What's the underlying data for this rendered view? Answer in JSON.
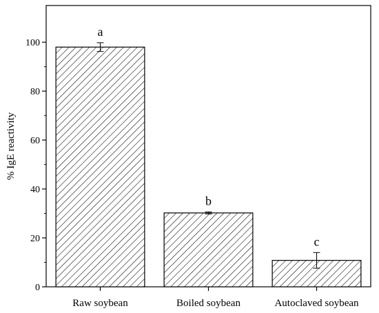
{
  "chart_data": {
    "type": "bar",
    "title": "",
    "xlabel": "",
    "ylabel": "% IgE reactivity",
    "categories": [
      "Raw soybean",
      "Boiled soybean",
      "Autoclaved soybean"
    ],
    "values": [
      98.0,
      30.2,
      10.8
    ],
    "errors": [
      1.8,
      0.4,
      3.2
    ],
    "significance_labels": [
      "a",
      "b",
      "c"
    ],
    "ylim": [
      0,
      115
    ],
    "yticks": [
      0,
      20,
      40,
      60,
      80,
      100
    ],
    "grid": false,
    "bar_fill": "hatched",
    "colors": {
      "stroke": "#000000",
      "hatch": "#000000",
      "background": "#ffffff"
    }
  }
}
